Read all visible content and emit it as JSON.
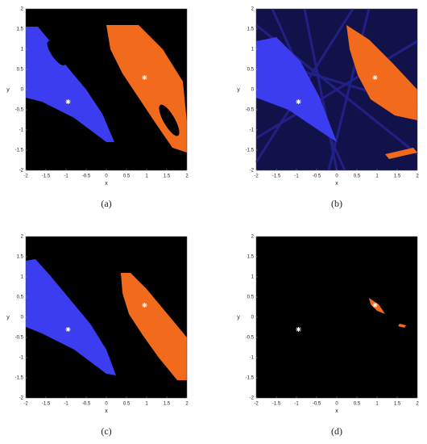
{
  "chart_data": [
    {
      "type": "basin",
      "caption": "(a)",
      "xlabel": "x",
      "ylabel": "y",
      "xlim": [
        -2,
        2
      ],
      "ylim": [
        -2,
        2
      ],
      "xticks": [
        -2,
        -1.5,
        -1,
        -0.5,
        0,
        0.5,
        1,
        1.5,
        2
      ],
      "yticks": [
        -2,
        -1.5,
        -1,
        -0.5,
        0,
        0.5,
        1,
        1.5,
        2
      ],
      "colors": [
        "#3c3cf0",
        "#f26a1b"
      ],
      "roots": {
        "x": [
          -0.95,
          0.95
        ],
        "y": [
          -0.3,
          0.3
        ]
      }
    },
    {
      "type": "basin",
      "caption": "(b)",
      "xlabel": "x",
      "ylabel": "y",
      "xlim": [
        -2,
        2
      ],
      "ylim": [
        -2,
        2
      ],
      "xticks": [
        -2,
        -1.5,
        -1,
        -0.5,
        0,
        0.5,
        1,
        1.5,
        2
      ],
      "yticks": [
        -2,
        -1.5,
        -1,
        -0.5,
        0,
        0.5,
        1,
        1.5,
        2
      ],
      "colors": [
        "#3c3cf0",
        "#f26a1b"
      ],
      "roots": {
        "x": [
          -0.95,
          0.95
        ],
        "y": [
          -0.3,
          0.3
        ]
      }
    },
    {
      "type": "basin",
      "caption": "(c)",
      "xlabel": "x",
      "ylabel": "y",
      "xlim": [
        -2,
        2
      ],
      "ylim": [
        -2,
        2
      ],
      "xticks": [
        -2,
        -1.5,
        -1,
        -0.5,
        0,
        0.5,
        1,
        1.5,
        2
      ],
      "yticks": [
        -2,
        -1.5,
        -1,
        -0.5,
        0,
        0.5,
        1,
        1.5,
        2
      ],
      "colors": [
        "#3c3cf0",
        "#f26a1b"
      ],
      "roots": {
        "x": [
          -0.95,
          0.95
        ],
        "y": [
          -0.3,
          0.3
        ]
      }
    },
    {
      "type": "basin",
      "caption": "(d)",
      "xlabel": "x",
      "ylabel": "y",
      "xlim": [
        -2,
        2
      ],
      "ylim": [
        -2,
        2
      ],
      "xticks": [
        -2,
        -1.5,
        -1,
        -0.5,
        0,
        0.5,
        1,
        1.5,
        2
      ],
      "yticks": [
        -2,
        -1.5,
        -1,
        -0.5,
        0,
        0.5,
        1,
        1.5,
        2
      ],
      "colors": [
        "#3c3cf0",
        "#f26a1b"
      ],
      "roots": {
        "x": [
          -0.95,
          0.95
        ],
        "y": [
          -0.3,
          0.3
        ]
      }
    }
  ]
}
